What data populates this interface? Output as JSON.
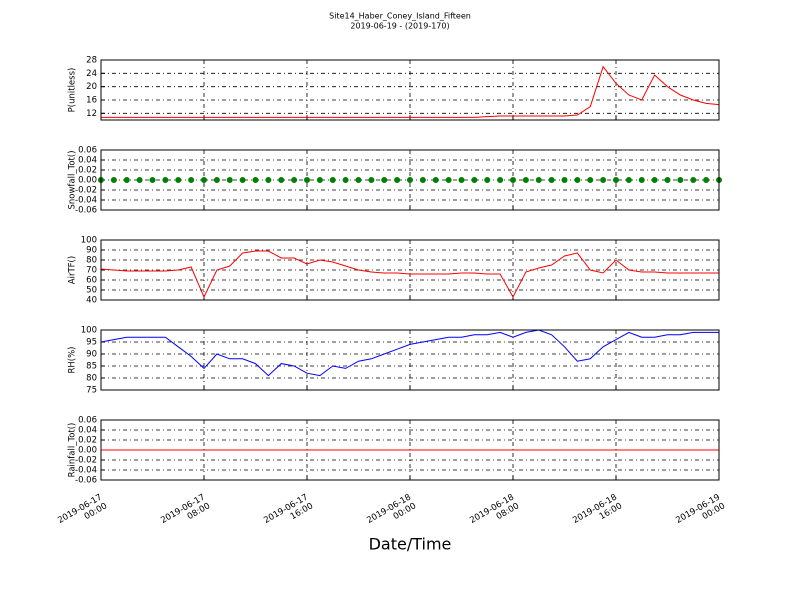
{
  "chart_data": [
    {
      "type": "line",
      "title": "Site14_Haber_Coney_Island_Fifteen",
      "subtitle": "2019-06-19 - (2019-170)",
      "y_label": "P(unitless)",
      "color": "#ff0000",
      "x": [
        "2019-06-17 00:00",
        "2019-06-17 01:00",
        "2019-06-17 02:00",
        "2019-06-17 03:00",
        "2019-06-17 04:00",
        "2019-06-17 05:00",
        "2019-06-17 06:00",
        "2019-06-17 07:00",
        "2019-06-17 08:00",
        "2019-06-17 09:00",
        "2019-06-17 10:00",
        "2019-06-17 11:00",
        "2019-06-17 12:00",
        "2019-06-17 13:00",
        "2019-06-17 14:00",
        "2019-06-17 15:00",
        "2019-06-17 16:00",
        "2019-06-17 17:00",
        "2019-06-17 18:00",
        "2019-06-17 19:00",
        "2019-06-17 20:00",
        "2019-06-17 21:00",
        "2019-06-17 22:00",
        "2019-06-17 23:00",
        "2019-06-18 00:00",
        "2019-06-18 01:00",
        "2019-06-18 02:00",
        "2019-06-18 03:00",
        "2019-06-18 04:00",
        "2019-06-18 05:00",
        "2019-06-18 06:00",
        "2019-06-18 07:00",
        "2019-06-18 08:00",
        "2019-06-18 09:00",
        "2019-06-18 10:00",
        "2019-06-18 11:00",
        "2019-06-18 12:00",
        "2019-06-18 13:00",
        "2019-06-18 14:00",
        "2019-06-18 15:00",
        "2019-06-18 16:00",
        "2019-06-18 17:00",
        "2019-06-18 18:00",
        "2019-06-18 19:00",
        "2019-06-18 20:00",
        "2019-06-18 21:00",
        "2019-06-18 22:00",
        "2019-06-18 23:00",
        "2019-06-19 00:00"
      ],
      "values": [
        10.8,
        10.8,
        10.8,
        10.8,
        10.8,
        10.8,
        10.8,
        10.8,
        10.8,
        10.8,
        10.8,
        10.8,
        10.8,
        10.8,
        10.8,
        10.8,
        10.8,
        10.8,
        10.8,
        10.8,
        10.8,
        10.8,
        10.8,
        10.8,
        10.8,
        10.8,
        10.8,
        10.8,
        10.8,
        10.8,
        11,
        11.2,
        11.2,
        11.2,
        11.2,
        11.2,
        11.2,
        11.5,
        14,
        26,
        21,
        17.5,
        16,
        23.5,
        20,
        17.5,
        16,
        15,
        14.6
      ],
      "xlim": [
        "2019-06-17 00:00",
        "2019-06-19 00:00"
      ],
      "ylim": [
        10,
        28
      ],
      "yticks": [
        12,
        16,
        20,
        24,
        28
      ],
      "grid": true
    },
    {
      "type": "scatter",
      "y_label": "Snowfall_Tot()",
      "color": "#008000",
      "x": [
        "2019-06-17 00:00",
        "2019-06-17 01:00",
        "2019-06-17 02:00",
        "2019-06-17 03:00",
        "2019-06-17 04:00",
        "2019-06-17 05:00",
        "2019-06-17 06:00",
        "2019-06-17 07:00",
        "2019-06-17 08:00",
        "2019-06-17 09:00",
        "2019-06-17 10:00",
        "2019-06-17 11:00",
        "2019-06-17 12:00",
        "2019-06-17 13:00",
        "2019-06-17 14:00",
        "2019-06-17 15:00",
        "2019-06-17 16:00",
        "2019-06-17 17:00",
        "2019-06-17 18:00",
        "2019-06-17 19:00",
        "2019-06-17 20:00",
        "2019-06-17 21:00",
        "2019-06-17 22:00",
        "2019-06-17 23:00",
        "2019-06-18 00:00",
        "2019-06-18 01:00",
        "2019-06-18 02:00",
        "2019-06-18 03:00",
        "2019-06-18 04:00",
        "2019-06-18 05:00",
        "2019-06-18 06:00",
        "2019-06-18 07:00",
        "2019-06-18 08:00",
        "2019-06-18 09:00",
        "2019-06-18 10:00",
        "2019-06-18 11:00",
        "2019-06-18 12:00",
        "2019-06-18 13:00",
        "2019-06-18 14:00",
        "2019-06-18 15:00",
        "2019-06-18 16:00",
        "2019-06-18 17:00",
        "2019-06-18 18:00",
        "2019-06-18 19:00",
        "2019-06-18 20:00",
        "2019-06-18 21:00",
        "2019-06-18 22:00",
        "2019-06-18 23:00",
        "2019-06-19 00:00"
      ],
      "values": [
        0,
        0,
        0,
        0,
        0,
        0,
        0,
        0,
        0,
        0,
        0,
        0,
        0,
        0,
        0,
        0,
        0,
        0,
        0,
        0,
        0,
        0,
        0,
        0,
        0,
        0,
        0,
        0,
        0,
        0,
        0,
        0,
        0,
        0,
        0,
        0,
        0,
        0,
        0,
        0,
        0,
        0,
        0,
        0,
        0,
        0,
        0,
        0,
        0
      ],
      "xlim": [
        "2019-06-17 00:00",
        "2019-06-19 00:00"
      ],
      "ylim": [
        -0.06,
        0.06
      ],
      "yticks": [
        -0.06,
        -0.04,
        -0.02,
        {
          "value": 0,
          "label": "0.00"
        },
        0.02,
        0.04,
        0.06
      ],
      "grid": true
    },
    {
      "type": "line",
      "y_label": "AirTF()",
      "color": "#ff0000",
      "x": [
        "2019-06-17 00:00",
        "2019-06-17 01:00",
        "2019-06-17 02:00",
        "2019-06-17 03:00",
        "2019-06-17 04:00",
        "2019-06-17 05:00",
        "2019-06-17 06:00",
        "2019-06-17 07:00",
        "2019-06-17 08:00",
        "2019-06-17 09:00",
        "2019-06-17 10:00",
        "2019-06-17 11:00",
        "2019-06-17 12:00",
        "2019-06-17 13:00",
        "2019-06-17 14:00",
        "2019-06-17 15:00",
        "2019-06-17 16:00",
        "2019-06-17 17:00",
        "2019-06-17 18:00",
        "2019-06-17 19:00",
        "2019-06-17 20:00",
        "2019-06-17 21:00",
        "2019-06-17 22:00",
        "2019-06-17 23:00",
        "2019-06-18 00:00",
        "2019-06-18 01:00",
        "2019-06-18 02:00",
        "2019-06-18 03:00",
        "2019-06-18 04:00",
        "2019-06-18 05:00",
        "2019-06-18 06:00",
        "2019-06-18 07:00",
        "2019-06-18 08:00",
        "2019-06-18 09:00",
        "2019-06-18 10:00",
        "2019-06-18 11:00",
        "2019-06-18 12:00",
        "2019-06-18 13:00",
        "2019-06-18 14:00",
        "2019-06-18 15:00",
        "2019-06-18 16:00",
        "2019-06-18 17:00",
        "2019-06-18 18:00",
        "2019-06-18 19:00",
        "2019-06-18 20:00",
        "2019-06-18 21:00",
        "2019-06-18 22:00",
        "2019-06-18 23:00",
        "2019-06-19 00:00"
      ],
      "values": [
        71,
        70,
        69,
        69,
        69,
        69,
        70,
        73,
        43,
        70,
        74,
        87,
        89,
        89,
        82,
        82,
        76,
        80,
        78,
        74,
        70,
        68,
        67,
        67,
        66,
        66,
        66,
        66,
        67,
        67,
        66,
        66,
        43,
        68,
        72,
        75,
        84,
        87,
        70,
        67,
        80,
        70,
        68,
        68,
        67,
        67,
        67,
        67,
        67
      ],
      "xlim": [
        "2019-06-17 00:00",
        "2019-06-19 00:00"
      ],
      "ylim": [
        40,
        100
      ],
      "yticks": [
        40,
        50,
        60,
        70,
        80,
        90,
        100
      ],
      "grid": true
    },
    {
      "type": "line",
      "y_label": "RH(%)",
      "color": "#0000ff",
      "x": [
        "2019-06-17 00:00",
        "2019-06-17 01:00",
        "2019-06-17 02:00",
        "2019-06-17 03:00",
        "2019-06-17 04:00",
        "2019-06-17 05:00",
        "2019-06-17 06:00",
        "2019-06-17 07:00",
        "2019-06-17 08:00",
        "2019-06-17 09:00",
        "2019-06-17 10:00",
        "2019-06-17 11:00",
        "2019-06-17 12:00",
        "2019-06-17 13:00",
        "2019-06-17 14:00",
        "2019-06-17 15:00",
        "2019-06-17 16:00",
        "2019-06-17 17:00",
        "2019-06-17 18:00",
        "2019-06-17 19:00",
        "2019-06-17 20:00",
        "2019-06-17 21:00",
        "2019-06-17 22:00",
        "2019-06-17 23:00",
        "2019-06-18 00:00",
        "2019-06-18 01:00",
        "2019-06-18 02:00",
        "2019-06-18 03:00",
        "2019-06-18 04:00",
        "2019-06-18 05:00",
        "2019-06-18 06:00",
        "2019-06-18 07:00",
        "2019-06-18 08:00",
        "2019-06-18 09:00",
        "2019-06-18 10:00",
        "2019-06-18 11:00",
        "2019-06-18 12:00",
        "2019-06-18 13:00",
        "2019-06-18 14:00",
        "2019-06-18 15:00",
        "2019-06-18 16:00",
        "2019-06-18 17:00",
        "2019-06-18 18:00",
        "2019-06-18 19:00",
        "2019-06-18 20:00",
        "2019-06-18 21:00",
        "2019-06-18 22:00",
        "2019-06-18 23:00",
        "2019-06-19 00:00"
      ],
      "values": [
        95,
        96,
        97,
        97,
        97,
        97,
        93,
        89,
        84,
        90,
        88,
        88,
        86,
        81,
        86,
        85,
        82,
        81,
        85,
        84,
        87,
        88,
        90,
        92,
        94,
        95,
        96,
        97,
        97,
        98,
        98,
        99,
        97,
        99,
        100,
        98,
        93,
        87,
        88,
        93,
        96,
        99,
        97,
        97,
        98,
        98,
        99,
        99,
        99
      ],
      "xlim": [
        "2019-06-17 00:00",
        "2019-06-19 00:00"
      ],
      "ylim": [
        75,
        100
      ],
      "yticks": [
        75,
        80,
        85,
        90,
        95,
        100
      ],
      "grid": true
    },
    {
      "type": "line",
      "y_label": "Rainfall_Tot()",
      "x_label": "Date/Time",
      "color": "#ff0000",
      "x": [
        "2019-06-17 00:00",
        "2019-06-17 01:00",
        "2019-06-17 02:00",
        "2019-06-17 03:00",
        "2019-06-17 04:00",
        "2019-06-17 05:00",
        "2019-06-17 06:00",
        "2019-06-17 07:00",
        "2019-06-17 08:00",
        "2019-06-17 09:00",
        "2019-06-17 10:00",
        "2019-06-17 11:00",
        "2019-06-17 12:00",
        "2019-06-17 13:00",
        "2019-06-17 14:00",
        "2019-06-17 15:00",
        "2019-06-17 16:00",
        "2019-06-17 17:00",
        "2019-06-17 18:00",
        "2019-06-17 19:00",
        "2019-06-17 20:00",
        "2019-06-17 21:00",
        "2019-06-17 22:00",
        "2019-06-17 23:00",
        "2019-06-18 00:00",
        "2019-06-18 01:00",
        "2019-06-18 02:00",
        "2019-06-18 03:00",
        "2019-06-18 04:00",
        "2019-06-18 05:00",
        "2019-06-18 06:00",
        "2019-06-18 07:00",
        "2019-06-18 08:00",
        "2019-06-18 09:00",
        "2019-06-18 10:00",
        "2019-06-18 11:00",
        "2019-06-18 12:00",
        "2019-06-18 13:00",
        "2019-06-18 14:00",
        "2019-06-18 15:00",
        "2019-06-18 16:00",
        "2019-06-18 17:00",
        "2019-06-18 18:00",
        "2019-06-18 19:00",
        "2019-06-18 20:00",
        "2019-06-18 21:00",
        "2019-06-18 22:00",
        "2019-06-18 23:00",
        "2019-06-19 00:00"
      ],
      "values": [
        0,
        0,
        0,
        0,
        0,
        0,
        0,
        0,
        0,
        0,
        0,
        0,
        0,
        0,
        0,
        0,
        0,
        0,
        0,
        0,
        0,
        0,
        0,
        0,
        0,
        0,
        0,
        0,
        0,
        0,
        0,
        0,
        0,
        0,
        0,
        0,
        0,
        0,
        0,
        0,
        0,
        0,
        0,
        0,
        0,
        0,
        0,
        0,
        0
      ],
      "xlim": [
        "2019-06-17 00:00",
        "2019-06-19 00:00"
      ],
      "ylim": [
        -0.06,
        0.06
      ],
      "yticks": [
        -0.06,
        -0.04,
        -0.02,
        {
          "value": 0,
          "label": "0.00"
        },
        0.02,
        0.04,
        0.06
      ],
      "xticks": [
        {
          "value": "2019-06-17 00:00",
          "label": "2019-06-17 00:00"
        },
        {
          "value": "2019-06-17 08:00",
          "label": "2019-06-17 08:00"
        },
        {
          "value": "2019-06-17 16:00",
          "label": "2019-06-17 16:00"
        },
        {
          "value": "2019-06-18 00:00",
          "label": "2019-06-18 00:00"
        },
        {
          "value": "2019-06-18 08:00",
          "label": "2019-06-18 08:00"
        },
        {
          "value": "2019-06-18 16:00",
          "label": "2019-06-18 16:00"
        },
        {
          "value": "2019-06-19 00:00",
          "label": "2019-06-19 00:00"
        }
      ],
      "grid": true
    }
  ]
}
